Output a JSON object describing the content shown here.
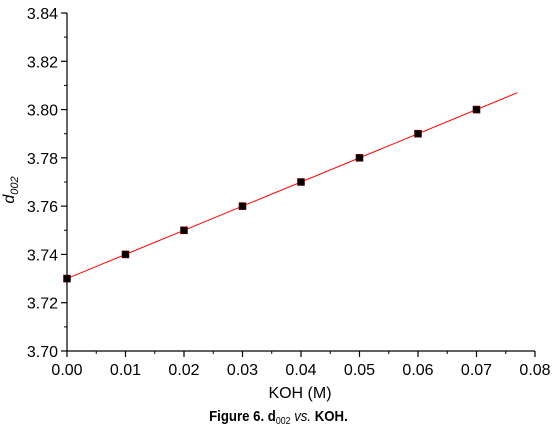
{
  "chart_data": {
    "type": "scatter",
    "xlabel": "KOH (M)",
    "ylabel": {
      "main": "d",
      "sub": "002"
    },
    "xlim": [
      0.0,
      0.08
    ],
    "ylim": [
      3.7,
      3.84
    ],
    "x_ticks": [
      "0.00",
      "0.01",
      "0.02",
      "0.03",
      "0.04",
      "0.05",
      "0.06",
      "0.07",
      "0.08"
    ],
    "y_ticks": [
      "3.70",
      "3.72",
      "3.74",
      "3.76",
      "3.78",
      "3.80",
      "3.82",
      "3.84"
    ],
    "series": [
      {
        "marker": "square",
        "marker_color": "#000000",
        "points": [
          {
            "x": 0.0,
            "y": 3.73
          },
          {
            "x": 0.01,
            "y": 3.74
          },
          {
            "x": 0.02,
            "y": 3.75
          },
          {
            "x": 0.03,
            "y": 3.76
          },
          {
            "x": 0.04,
            "y": 3.77
          },
          {
            "x": 0.05,
            "y": 3.78
          },
          {
            "x": 0.06,
            "y": 3.79
          },
          {
            "x": 0.07,
            "y": 3.8
          }
        ]
      }
    ],
    "fit_line": {
      "color": "#ff0000",
      "from": {
        "x": 0.0,
        "y": 3.73
      },
      "to": {
        "x": 0.077,
        "y": 3.807
      }
    },
    "grid": false
  },
  "caption": {
    "prefix": "Figure 6. d",
    "sub": "002",
    "vs": "vs.",
    "suffix": "KOH."
  }
}
